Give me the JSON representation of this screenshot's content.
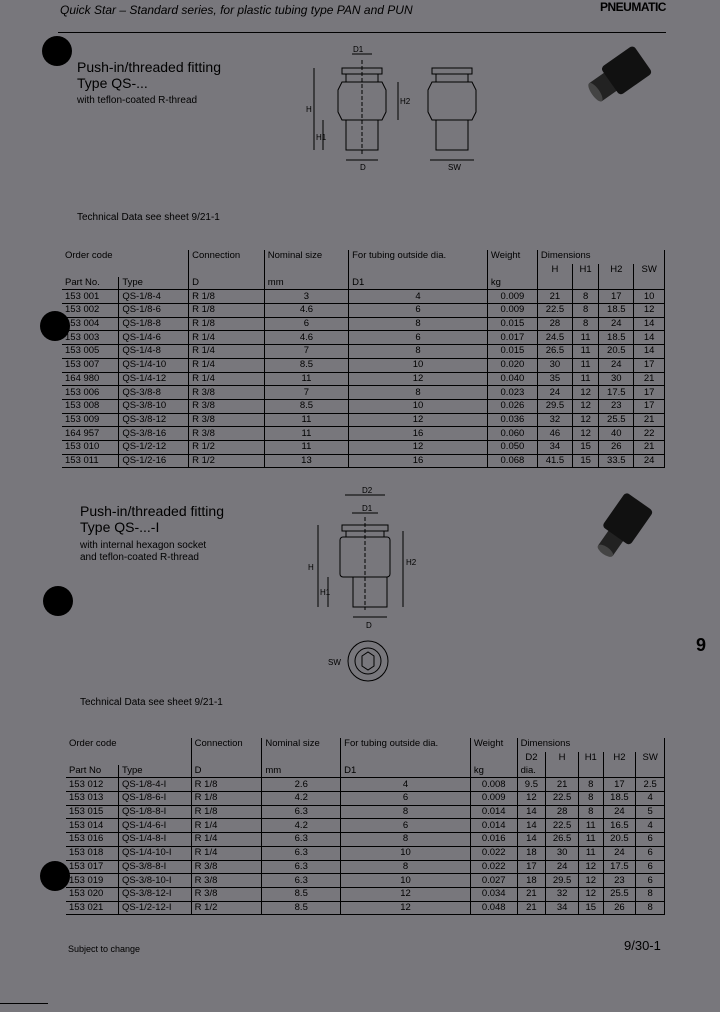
{
  "header": {
    "title": "Quick Star – Standard series, for plastic tubing type PAN and PUN",
    "brand": "PNEUMATIC"
  },
  "section1": {
    "title_line1": "Push-in/threaded fitting",
    "title_line2": "Type QS-...",
    "subtitle": "with teflon-coated R-thread",
    "tech_note": "Technical Data see sheet 9/21-1",
    "drawing_labels": {
      "d1": "D1",
      "h": "H",
      "h1": "H1",
      "h2": "H2",
      "d": "D",
      "sw": "SW"
    }
  },
  "table1": {
    "group_order": "Order code",
    "group_dims": "Dimensions",
    "headers": [
      "Part No.",
      "Type",
      "Connection",
      "Nominal size",
      "For tubing outside dia.",
      "Weight",
      "H",
      "H1",
      "H2",
      "SW"
    ],
    "units": [
      "",
      "",
      "D",
      "mm",
      "D1",
      "kg",
      "",
      "",
      "",
      ""
    ],
    "rows": [
      [
        "153 001",
        "QS-1/8-4",
        "R 1/8",
        "3",
        "4",
        "0.009",
        "21",
        "8",
        "17",
        "10"
      ],
      [
        "153 002",
        "QS-1/8-6",
        "R 1/8",
        "4.6",
        "6",
        "0.009",
        "22.5",
        "8",
        "18.5",
        "12"
      ],
      [
        "153 004",
        "QS-1/8-8",
        "R 1/8",
        "6",
        "8",
        "0.015",
        "28",
        "8",
        "24",
        "14"
      ],
      [
        "153 003",
        "QS-1/4-6",
        "R 1/4",
        "4.6",
        "6",
        "0.017",
        "24.5",
        "11",
        "18.5",
        "14"
      ],
      [
        "153 005",
        "QS-1/4-8",
        "R 1/4",
        "7",
        "8",
        "0.015",
        "26.5",
        "11",
        "20.5",
        "14"
      ],
      [
        "153 007",
        "QS-1/4-10",
        "R 1/4",
        "8.5",
        "10",
        "0.020",
        "30",
        "11",
        "24",
        "17"
      ],
      [
        "164 980",
        "QS-1/4-12",
        "R 1/4",
        "11",
        "12",
        "0.040",
        "35",
        "11",
        "30",
        "21"
      ],
      [
        "153 006",
        "QS-3/8-8",
        "R 3/8",
        "7",
        "8",
        "0.023",
        "24",
        "12",
        "17.5",
        "17"
      ],
      [
        "153 008",
        "QS-3/8-10",
        "R 3/8",
        "8.5",
        "10",
        "0.026",
        "29.5",
        "12",
        "23",
        "17"
      ],
      [
        "153 009",
        "QS-3/8-12",
        "R 3/8",
        "11",
        "12",
        "0.036",
        "32",
        "12",
        "25.5",
        "21"
      ],
      [
        "164 957",
        "QS-3/8-16",
        "R 3/8",
        "11",
        "16",
        "0.060",
        "46",
        "12",
        "40",
        "22"
      ],
      [
        "153 010",
        "QS-1/2-12",
        "R 1/2",
        "11",
        "12",
        "0.050",
        "34",
        "15",
        "26",
        "21"
      ],
      [
        "153 011",
        "QS-1/2-16",
        "R 1/2",
        "13",
        "16",
        "0.068",
        "41.5",
        "15",
        "33.5",
        "24"
      ]
    ]
  },
  "section2": {
    "title_line1": "Push-in/threaded fitting",
    "title_line2": "Type QS-...-I",
    "subtitle_line1": "with internal hexagon socket",
    "subtitle_line2": "and teflon-coated R-thread",
    "tech_note": "Technical Data see sheet 9/21-1",
    "drawing_labels": {
      "d2": "D2",
      "d1": "D1",
      "h": "H",
      "h1": "H1",
      "h2": "H2",
      "d": "D",
      "sw": "SW"
    }
  },
  "table2": {
    "group_order": "Order code",
    "group_dims": "Dimensions",
    "headers": [
      "Part No",
      "Type",
      "Connection",
      "Nominal size",
      "For tubing outside dia.",
      "Weight",
      "D2",
      "H",
      "H1",
      "H2",
      "SW"
    ],
    "units": [
      "",
      "",
      "D",
      "mm",
      "D1",
      "kg",
      "dia.",
      "",
      "",
      "",
      ""
    ],
    "rows": [
      [
        "153 012",
        "QS-1/8-4-I",
        "R 1/8",
        "2.6",
        "4",
        "0.008",
        "9.5",
        "21",
        "8",
        "17",
        "2.5"
      ],
      [
        "153 013",
        "QS-1/8-6-I",
        "R 1/8",
        "4.2",
        "6",
        "0.009",
        "12",
        "22.5",
        "8",
        "18.5",
        "4"
      ],
      [
        "153 015",
        "QS-1/8-8-I",
        "R 1/8",
        "6.3",
        "8",
        "0.014",
        "14",
        "28",
        "8",
        "24",
        "5"
      ],
      [
        "153 014",
        "QS-1/4-6-I",
        "R 1/4",
        "4.2",
        "6",
        "0.014",
        "14",
        "22.5",
        "11",
        "16.5",
        "4"
      ],
      [
        "153 016",
        "QS-1/4-8-I",
        "R 1/4",
        "6.3",
        "8",
        "0.016",
        "14",
        "26.5",
        "11",
        "20.5",
        "6"
      ],
      [
        "153 018",
        "QS-1/4-10-I",
        "R 1/4",
        "6.3",
        "10",
        "0.022",
        "18",
        "30",
        "11",
        "24",
        "6"
      ],
      [
        "153 017",
        "QS-3/8-8-I",
        "R 3/8",
        "6.3",
        "8",
        "0.022",
        "17",
        "24",
        "12",
        "17.5",
        "6"
      ],
      [
        "153 019",
        "QS-3/8-10-I",
        "R 3/8",
        "6.3",
        "10",
        "0.027",
        "18",
        "29.5",
        "12",
        "23",
        "6"
      ],
      [
        "153 020",
        "QS-3/8-12-I",
        "R 3/8",
        "8.5",
        "12",
        "0.034",
        "21",
        "32",
        "12",
        "25.5",
        "8"
      ],
      [
        "153 021",
        "QS-1/2-12-I",
        "R 1/2",
        "8.5",
        "12",
        "0.048",
        "21",
        "34",
        "15",
        "26",
        "8"
      ]
    ]
  },
  "side_tab": "9",
  "footer": {
    "note": "Subject to change",
    "page": "9/30-1"
  }
}
